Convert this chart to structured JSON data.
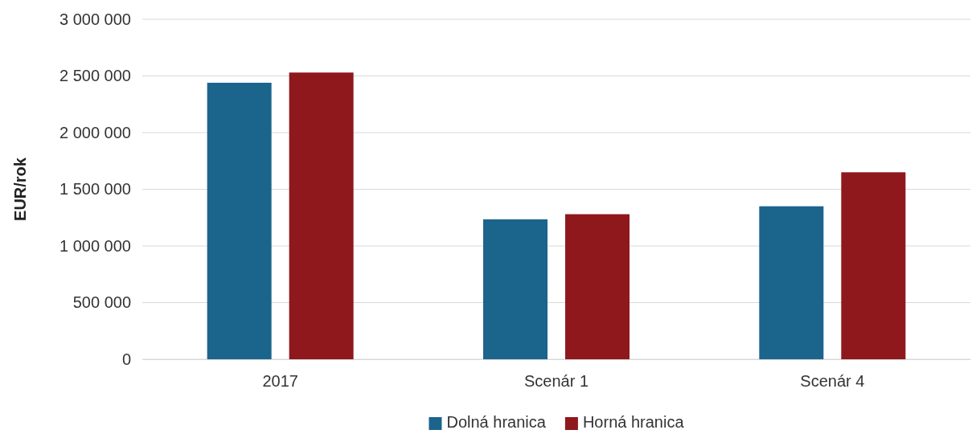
{
  "chart_data": {
    "type": "bar",
    "ylabel": "EUR/rok",
    "categories": [
      "2017",
      "Scenár 1",
      "Scenár 4"
    ],
    "series": [
      {
        "name": "Dolná hranica",
        "color": "#1b648c",
        "values": [
          2440000,
          1235000,
          1350000
        ]
      },
      {
        "name": "Horná hranica",
        "color": "#8e181b",
        "values": [
          2530000,
          1280000,
          1650000
        ]
      }
    ],
    "ylim": [
      0,
      3000000
    ],
    "yticks": [
      {
        "value": 0,
        "label": "0"
      },
      {
        "value": 500000,
        "label": "500 000"
      },
      {
        "value": 1000000,
        "label": "1 000 000"
      },
      {
        "value": 1500000,
        "label": "1 500 000"
      },
      {
        "value": 2000000,
        "label": "2 000 000"
      },
      {
        "value": 2500000,
        "label": "2 500 000"
      },
      {
        "value": 3000000,
        "label": "3 000 000"
      }
    ],
    "grid": "y",
    "legend": "bottom"
  }
}
